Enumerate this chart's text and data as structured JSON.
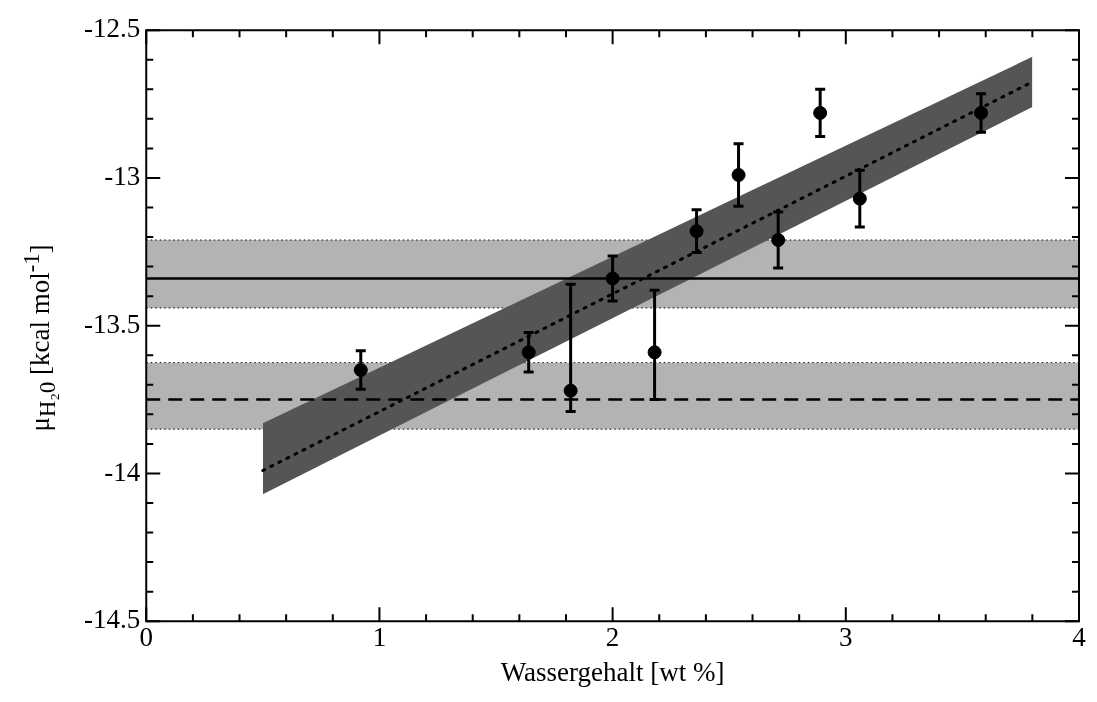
{
  "chart_data": {
    "type": "scatter",
    "xlabel": "Wassergehalt [wt %]",
    "ylabel": "μ$_{H₂0}$ [kcal mol$^{-1}$]",
    "xlim": [
      0,
      4
    ],
    "xticks": [
      0,
      {
        "value": 0.2,
        "label": null
      },
      {
        "value": 0.4,
        "label": null
      },
      {
        "value": 0.6,
        "label": null
      },
      {
        "value": 0.8,
        "label": null
      },
      1,
      {
        "value": 1.2,
        "label": null
      },
      {
        "value": 1.4,
        "label": null
      },
      {
        "value": 1.6,
        "label": null
      },
      {
        "value": 1.8,
        "label": null
      },
      2,
      {
        "value": 2.2,
        "label": null
      },
      {
        "value": 2.4,
        "label": null
      },
      {
        "value": 2.6,
        "label": null
      },
      {
        "value": 2.8,
        "label": null
      },
      3,
      {
        "value": 3.2,
        "label": null
      },
      {
        "value": 3.4,
        "label": null
      },
      {
        "value": 3.6,
        "label": null
      },
      {
        "value": 3.8,
        "label": null
      },
      4
    ],
    "ylim": [
      -14.5,
      -12.5
    ],
    "yticks": [
      -14.5,
      {
        "value": -14.4,
        "label": null
      },
      {
        "value": -14.3,
        "label": null
      },
      {
        "value": -14.2,
        "label": null
      },
      {
        "value": -14.1,
        "label": null
      },
      -14,
      {
        "value": -13.9,
        "label": null
      },
      {
        "value": -13.8,
        "label": null
      },
      {
        "value": -13.7,
        "label": null
      },
      {
        "value": -13.6,
        "label": null
      },
      -13.5,
      {
        "value": -13.4,
        "label": null
      },
      {
        "value": -13.3,
        "label": null
      },
      {
        "value": -13.2,
        "label": null
      },
      {
        "value": -13.1,
        "label": null
      },
      -13,
      {
        "value": -12.9,
        "label": null
      },
      {
        "value": -12.8,
        "label": null
      },
      {
        "value": -12.7,
        "label": null
      },
      {
        "value": -12.6,
        "label": null
      },
      -12.5
    ],
    "grid": false,
    "legend": false,
    "series": [
      {
        "type": "line",
        "color": "#000000",
        "line_style": "dotted",
        "marker": "none",
        "x": [
          0.5,
          3.8
        ],
        "values": [
          -13.99,
          -12.675
        ],
        "lower": [
          -14.07,
          -12.76
        ],
        "upper": [
          -13.83,
          -12.59
        ]
      },
      {
        "color": "#000000",
        "marker": "circle",
        "x": [
          0.92,
          1.64,
          1.82,
          2.0,
          2.18,
          2.36,
          2.54,
          2.71,
          2.89,
          3.06,
          3.58
        ],
        "values": [
          -13.65,
          -13.59,
          -13.72,
          -13.34,
          -13.59,
          -13.18,
          -12.99,
          -13.21,
          -12.78,
          -13.07,
          -12.78
        ],
        "errors": [
          0.065,
          0.067,
          [
            -13.79,
            -13.36
          ],
          0.076,
          [
            -13.75,
            -13.38
          ],
          0.072,
          0.106,
          0.095,
          0.08,
          0.096,
          0.065
        ]
      }
    ],
    "ref_lines": [
      {
        "axis": "y",
        "value": -13.34,
        "line_style": "solid",
        "color": "#000000"
      },
      {
        "axis": "y",
        "value": -13.75,
        "line_style": "dashed",
        "color": "#000000"
      }
    ],
    "bands": [
      {
        "axis": "y",
        "from": -13.44,
        "to": -13.21,
        "color": "#b3b3b3"
      },
      {
        "axis": "y",
        "from": -13.85,
        "to": -13.625,
        "color": "#b3b3b3"
      }
    ]
  }
}
